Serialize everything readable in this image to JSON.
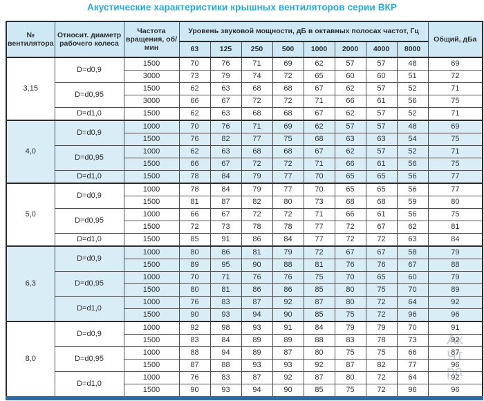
{
  "title": "Акустические характеристики крышных вентиляторов серии ВКР",
  "colors": {
    "title": "#29a9e1",
    "header_bg": "#cfe8f6",
    "group_alt_bg": "#d9edf7",
    "bottom_bar": "#2f6aa0",
    "border": "#4d4d4d"
  },
  "watermark": {
    "lines": [
      "Ак",
      "Чт",
      "ра"
    ]
  },
  "table": {
    "headers": {
      "fan_number": "№ вентилятора",
      "diameter": "Относит. диаметр рабочего колеса",
      "speed": "Частота вращения, об/мин",
      "spl_group": "Уровень звуковой мощности, дБ в октавных полосах частот, Гц",
      "frequencies": [
        "63",
        "125",
        "250",
        "500",
        "1000",
        "2000",
        "4000",
        "8000"
      ],
      "total": "Общий, дБа"
    },
    "groups": [
      {
        "fan": "3,15",
        "subgroups": [
          {
            "diameter": "D=d0,9",
            "rows": [
              {
                "speed": "1500",
                "values": [
                  70,
                  76,
                  71,
                  69,
                  62,
                  57,
                  57,
                  48
                ],
                "total": 69
              },
              {
                "speed": "3000",
                "values": [
                  73,
                  79,
                  74,
                  72,
                  65,
                  60,
                  60,
                  51
                ],
                "total": 72
              }
            ]
          },
          {
            "diameter": "D=d0,95",
            "rows": [
              {
                "speed": "1500",
                "values": [
                  62,
                  63,
                  68,
                  68,
                  67,
                  62,
                  57,
                  52
                ],
                "total": 71
              },
              {
                "speed": "3000",
                "values": [
                  66,
                  67,
                  72,
                  72,
                  71,
                  66,
                  61,
                  56
                ],
                "total": 75
              }
            ]
          },
          {
            "diameter": "D=d1,0",
            "rows": [
              {
                "speed": "1500",
                "values": [
                  62,
                  63,
                  68,
                  68,
                  67,
                  62,
                  57,
                  52
                ],
                "total": 71
              }
            ]
          }
        ]
      },
      {
        "fan": "4,0",
        "subgroups": [
          {
            "diameter": "D=d0,9",
            "rows": [
              {
                "speed": "1000",
                "values": [
                  70,
                  76,
                  71,
                  69,
                  62,
                  57,
                  57,
                  48
                ],
                "total": 69
              },
              {
                "speed": "1500",
                "values": [
                  76,
                  82,
                  77,
                  75,
                  68,
                  63,
                  63,
                  54
                ],
                "total": 75
              }
            ]
          },
          {
            "diameter": "D=d0,95",
            "rows": [
              {
                "speed": "1000",
                "values": [
                  62,
                  63,
                  68,
                  68,
                  67,
                  62,
                  57,
                  52
                ],
                "total": 71
              },
              {
                "speed": "1500",
                "values": [
                  66,
                  67,
                  72,
                  72,
                  71,
                  66,
                  61,
                  56
                ],
                "total": 75
              }
            ]
          },
          {
            "diameter": "D=d1,0",
            "rows": [
              {
                "speed": "1500",
                "values": [
                  78,
                  84,
                  79,
                  77,
                  70,
                  65,
                  65,
                  56
                ],
                "total": 77
              }
            ]
          }
        ]
      },
      {
        "fan": "5,0",
        "subgroups": [
          {
            "diameter": "D=d0,9",
            "rows": [
              {
                "speed": "1000",
                "values": [
                  78,
                  84,
                  79,
                  77,
                  70,
                  65,
                  65,
                  56
                ],
                "total": 77
              },
              {
                "speed": "1500",
                "values": [
                  81,
                  87,
                  82,
                  80,
                  73,
                  68,
                  68,
                  59
                ],
                "total": 80
              }
            ]
          },
          {
            "diameter": "D=d0,95",
            "rows": [
              {
                "speed": "1000",
                "values": [
                  66,
                  67,
                  72,
                  72,
                  71,
                  66,
                  61,
                  56
                ],
                "total": 75
              },
              {
                "speed": "1500",
                "values": [
                  72,
                  73,
                  78,
                  78,
                  77,
                  72,
                  67,
                  62
                ],
                "total": 81
              }
            ]
          },
          {
            "diameter": "D=d1,0",
            "rows": [
              {
                "speed": "1500",
                "values": [
                  85,
                  91,
                  86,
                  84,
                  77,
                  72,
                  72,
                  63
                ],
                "total": 84
              }
            ]
          }
        ]
      },
      {
        "fan": "6,3",
        "subgroups": [
          {
            "diameter": "D=d0,9",
            "rows": [
              {
                "speed": "1000",
                "values": [
                  80,
                  86,
                  81,
                  79,
                  72,
                  67,
                  67,
                  58
                ],
                "total": 79
              },
              {
                "speed": "1500",
                "values": [
                  89,
                  95,
                  90,
                  88,
                  81,
                  76,
                  76,
                  67
                ],
                "total": 88
              }
            ]
          },
          {
            "diameter": "D=d0,95",
            "rows": [
              {
                "speed": "1000",
                "values": [
                  70,
                  71,
                  76,
                  76,
                  75,
                  70,
                  65,
                  60
                ],
                "total": 79
              },
              {
                "speed": "1500",
                "values": [
                  80,
                  81,
                  86,
                  86,
                  85,
                  80,
                  75,
                  70
                ],
                "total": 89
              }
            ]
          },
          {
            "diameter": "D=d1,0",
            "rows": [
              {
                "speed": "1000",
                "values": [
                  76,
                  83,
                  87,
                  92,
                  87,
                  80,
                  72,
                  64
                ],
                "total": 92
              },
              {
                "speed": "1500",
                "values": [
                  90,
                  93,
                  94,
                  90,
                  85,
                  75,
                  72,
                  96
                ],
                "total": 96
              }
            ]
          }
        ]
      },
      {
        "fan": "8,0",
        "subgroups": [
          {
            "diameter": "D=d0,9",
            "rows": [
              {
                "speed": "1000",
                "values": [
                  92,
                  98,
                  93,
                  91,
                  84,
                  79,
                  79,
                  70
                ],
                "total": 91
              },
              {
                "speed": "1500",
                "values": [
                  83,
                  84,
                  89,
                  89,
                  88,
                  83,
                  78,
                  73
                ],
                "total": 92
              }
            ]
          },
          {
            "diameter": "D=d0,95",
            "rows": [
              {
                "speed": "1000",
                "values": [
                  88,
                  94,
                  89,
                  87,
                  80,
                  75,
                  75,
                  66
                ],
                "total": 87
              },
              {
                "speed": "1500",
                "values": [
                  87,
                  88,
                  93,
                  93,
                  92,
                  87,
                  82,
                  77
                ],
                "total": 96
              }
            ]
          },
          {
            "diameter": "D=d1,0",
            "rows": [
              {
                "speed": "1000",
                "values": [
                  76,
                  83,
                  87,
                  92,
                  87,
                  80,
                  72,
                  64
                ],
                "total": 92
              },
              {
                "speed": "1500",
                "values": [
                  90,
                  93,
                  94,
                  90,
                  85,
                  75,
                  72,
                  96
                ],
                "total": 96
              }
            ]
          }
        ]
      }
    ]
  }
}
